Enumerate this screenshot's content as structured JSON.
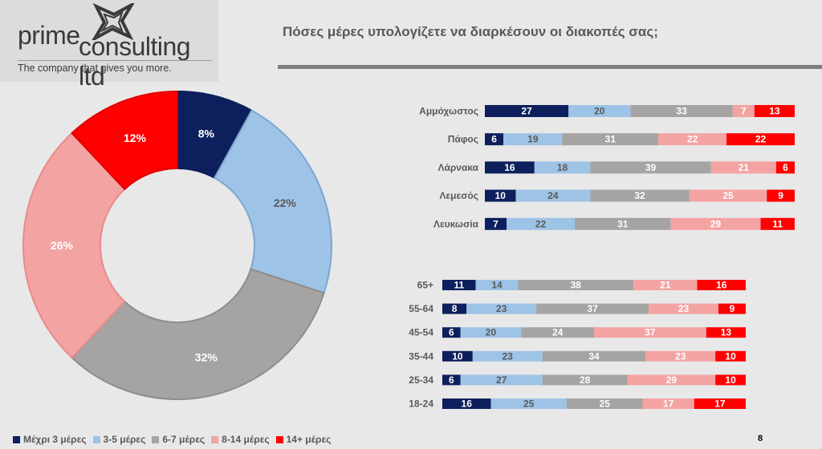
{
  "logo": {
    "line1": "prime",
    "line2": "consulting ltd",
    "tagline": "The company that gives you more."
  },
  "title": "Πόσες μέρες υπολογίζετε να διαρκέσουν οι διακοπές σας;",
  "page_number": "8",
  "colors": {
    "series": [
      "#0d1f5c",
      "#9dc3e6",
      "#a6a3a3",
      "#f4a3a3",
      "#ff0000"
    ],
    "series_borders": [
      "#0d1f5c",
      "#7ea6cf",
      "#8f8c8c",
      "#e88a8a",
      "#e00000"
    ],
    "label_light_text": "#ffffff",
    "label_dark_text": "#595959",
    "category_text": "#595959"
  },
  "chart_data": [
    {
      "type": "donut",
      "categories": [
        "Μέχρι 3 μέρες",
        "3-5 μέρες",
        "6-7 μέρες",
        "8-14 μέρες",
        "14+ μέρες"
      ],
      "values": [
        8,
        22,
        32,
        26,
        12
      ],
      "labels": [
        "8%",
        "22%",
        "32%",
        "26%",
        "12%"
      ],
      "legend": "bottom"
    },
    {
      "type": "bar",
      "stacked": true,
      "orientation": "horizontal",
      "categories": [
        "Αμμόχωστος",
        "Πάφος",
        "Λάρνακα",
        "Λεμεσός",
        "Λευκωσία"
      ],
      "series": [
        {
          "name": "Μέχρι 3 μέρες",
          "values": [
            27,
            6,
            16,
            10,
            7
          ]
        },
        {
          "name": "3-5 μέρες",
          "values": [
            20,
            19,
            18,
            24,
            22
          ]
        },
        {
          "name": "6-7 μέρες",
          "values": [
            33,
            31,
            39,
            32,
            31
          ]
        },
        {
          "name": "8-14 μέρες",
          "values": [
            7,
            22,
            21,
            25,
            29
          ]
        },
        {
          "name": "14+ μέρες",
          "values": [
            13,
            22,
            6,
            9,
            11
          ]
        }
      ]
    },
    {
      "type": "bar",
      "stacked": true,
      "orientation": "horizontal",
      "categories": [
        "65+",
        "55-64",
        "45-54",
        "35-44",
        "25-34",
        "18-24"
      ],
      "series": [
        {
          "name": "Μέχρι 3 μέρες",
          "values": [
            11,
            8,
            6,
            10,
            6,
            16
          ]
        },
        {
          "name": "3-5 μέρες",
          "values": [
            14,
            23,
            20,
            23,
            27,
            25
          ]
        },
        {
          "name": "6-7 μέρες",
          "values": [
            38,
            37,
            24,
            34,
            28,
            25
          ]
        },
        {
          "name": "8-14 μέρες",
          "values": [
            21,
            23,
            37,
            23,
            29,
            17
          ]
        },
        {
          "name": "14+ μέρες",
          "values": [
            16,
            9,
            13,
            10,
            10,
            17
          ]
        }
      ]
    }
  ]
}
